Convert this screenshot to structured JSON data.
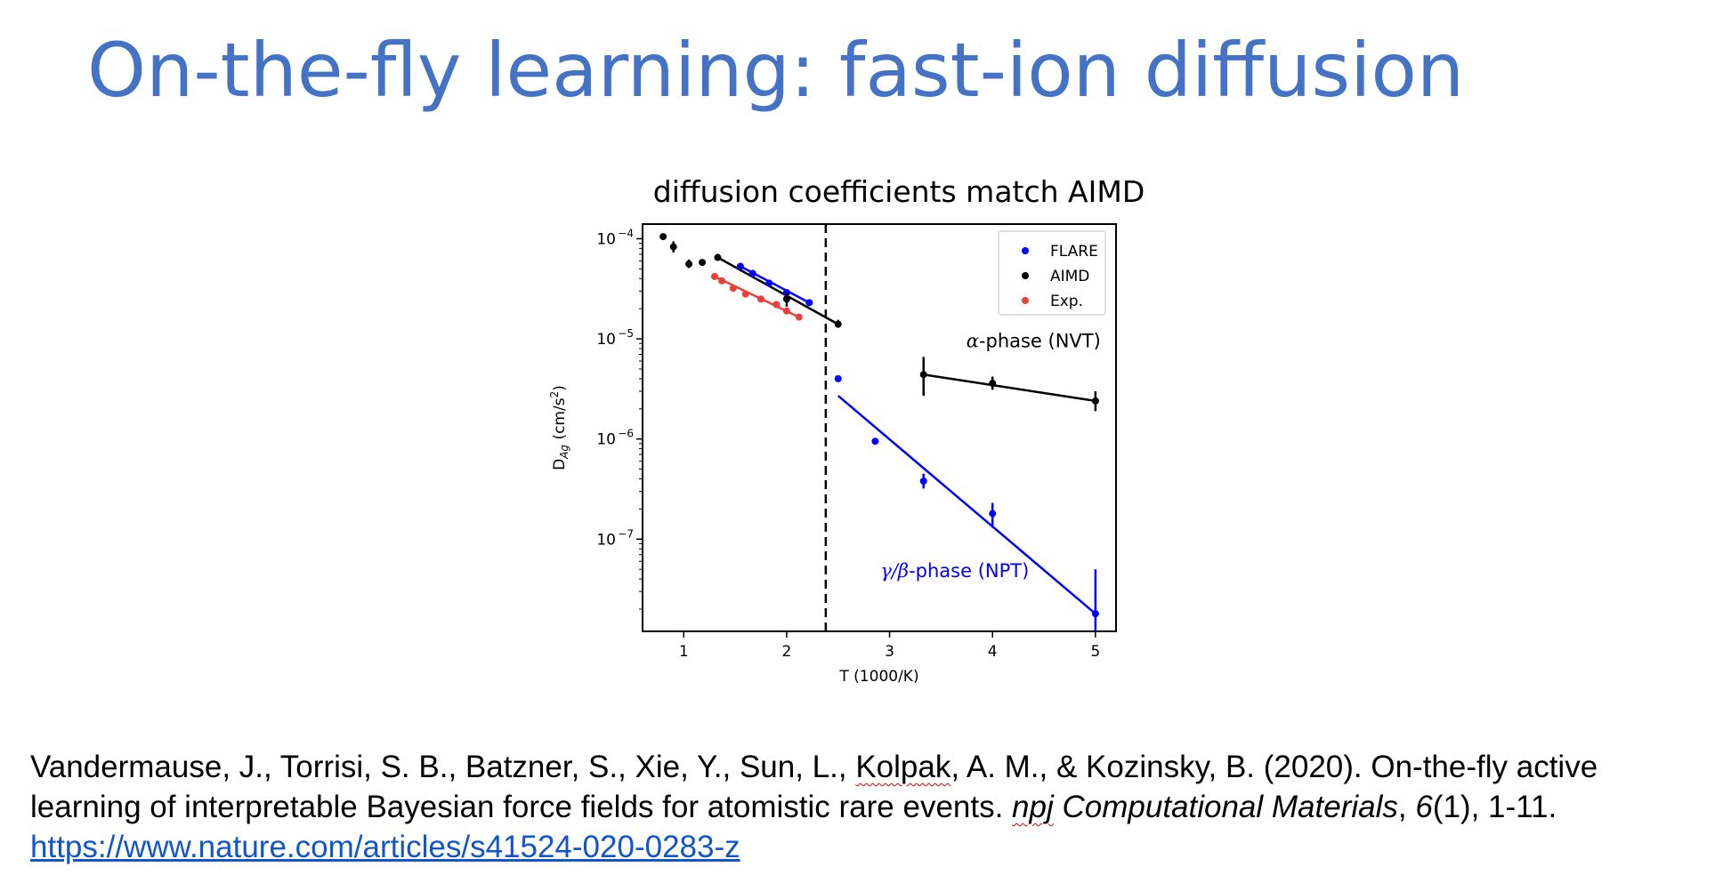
{
  "slide": {
    "title": "On-the-fly learning: fast-ion diffusion"
  },
  "citation": {
    "authors_pre": "Vandermause, J., Torrisi, S. B., Batzner, S., Xie, Y., Sun, L., ",
    "author_flagged": "Kolpak",
    "authors_post": ", A. M., & Kozinsky, B. (2020). On-the-fly active learning of interpretable Bayesian force fields for atomistic rare events. ",
    "journal_flagged": "npj",
    "journal_rest": " Computational Materials",
    "volume": "6",
    "issue_pages": "(1), 1-11. ",
    "url": "https://www.nature.com/articles/s41524-020-0283-z"
  },
  "chart_data": {
    "type": "scatter",
    "title": "diffusion coefficients match AIMD",
    "xlabel": "T (1000/K)",
    "ylabel_base": "D",
    "ylabel_sub": "Ag",
    "ylabel_unit_pre": " (cm/s",
    "ylabel_unit_sup": "2",
    "ylabel_unit_post": ")",
    "xlim": [
      0.6,
      5.2
    ],
    "ylim": [
      1.2e-08,
      0.00014
    ],
    "yscale": "log",
    "xticks": [
      1,
      2,
      3,
      4,
      5
    ],
    "xtick_labels": [
      "1",
      "2",
      "3",
      "4",
      "5"
    ],
    "yticks": [
      0.0001,
      1e-05,
      1e-06,
      1e-07
    ],
    "ytick_mant": [
      "10",
      "10",
      "10",
      "10"
    ],
    "ytick_exp": [
      "−4",
      "−5",
      "−6",
      "−7"
    ],
    "grid": false,
    "legend_position": "top-right",
    "phase_boundary_x": 2.38,
    "annotations": {
      "alpha_sym": "α",
      "alpha_text": "-phase (NVT)",
      "gamma_sym": "γ/β",
      "gamma_text": "-phase (NPT)"
    },
    "series": [
      {
        "name": "FLARE",
        "color": "#0000ff",
        "points": [
          {
            "x": 1.55,
            "y": 5.3e-05
          },
          {
            "x": 1.67,
            "y": 4.5e-05
          },
          {
            "x": 1.83,
            "y": 3.6e-05
          },
          {
            "x": 2.0,
            "y": 2.9e-05
          },
          {
            "x": 2.22,
            "y": 2.3e-05
          },
          {
            "x": 2.5,
            "y": 4e-06
          },
          {
            "x": 2.86,
            "y": 9.5e-07
          },
          {
            "x": 3.33,
            "y": 3.8e-07,
            "err": [
              3.2e-07,
              4.5e-07
            ]
          },
          {
            "x": 4.0,
            "y": 1.8e-07,
            "err": [
              1.3e-07,
              2.3e-07
            ]
          },
          {
            "x": 5.0,
            "y": 1.8e-08,
            "err": [
              1.2e-08,
              5e-08
            ]
          }
        ],
        "fits": [
          {
            "x": [
              1.55,
              2.22
            ],
            "y": [
              5.3e-05,
              2.3e-05
            ]
          },
          {
            "x": [
              2.5,
              5.0
            ],
            "y": [
              2.7e-06,
              1.8e-08
            ]
          }
        ]
      },
      {
        "name": "AIMD",
        "color": "#000000",
        "points": [
          {
            "x": 0.8,
            "y": 0.000105
          },
          {
            "x": 0.9,
            "y": 8.3e-05,
            "err": [
              7.3e-05,
              9.4e-05
            ]
          },
          {
            "x": 1.05,
            "y": 5.6e-05,
            "err": [
              5.1e-05,
              6.2e-05
            ]
          },
          {
            "x": 1.18,
            "y": 5.8e-05
          },
          {
            "x": 1.33,
            "y": 6.5e-05
          },
          {
            "x": 2.0,
            "y": 2.5e-05,
            "err": [
              2.1e-05,
              2.9e-05
            ]
          },
          {
            "x": 2.5,
            "y": 1.4e-05,
            "err": [
              1.3e-05,
              1.55e-05
            ]
          },
          {
            "x": 3.33,
            "y": 4.4e-06,
            "err": [
              2.7e-06,
              6.6e-06
            ]
          },
          {
            "x": 4.0,
            "y": 3.6e-06,
            "err": [
              3.1e-06,
              4.2e-06
            ]
          },
          {
            "x": 5.0,
            "y": 2.4e-06,
            "err": [
              1.9e-06,
              3e-06
            ]
          }
        ],
        "fits": [
          {
            "x": [
              1.33,
              2.5
            ],
            "y": [
              6.5e-05,
              1.4e-05
            ]
          },
          {
            "x": [
              3.33,
              5.0
            ],
            "y": [
              4.4e-06,
              2.4e-06
            ]
          }
        ]
      },
      {
        "name": "Exp.",
        "color": "#e8403a",
        "points": [
          {
            "x": 1.3,
            "y": 4.2e-05
          },
          {
            "x": 1.37,
            "y": 3.8e-05
          },
          {
            "x": 1.48,
            "y": 3.2e-05
          },
          {
            "x": 1.6,
            "y": 2.8e-05
          },
          {
            "x": 1.75,
            "y": 2.5e-05
          },
          {
            "x": 1.9,
            "y": 2.2e-05
          },
          {
            "x": 2.0,
            "y": 1.9e-05
          },
          {
            "x": 2.12,
            "y": 1.65e-05
          }
        ],
        "fits": [
          {
            "x": [
              1.3,
              2.12
            ],
            "y": [
              4.2e-05,
              1.65e-05
            ]
          }
        ]
      }
    ]
  }
}
